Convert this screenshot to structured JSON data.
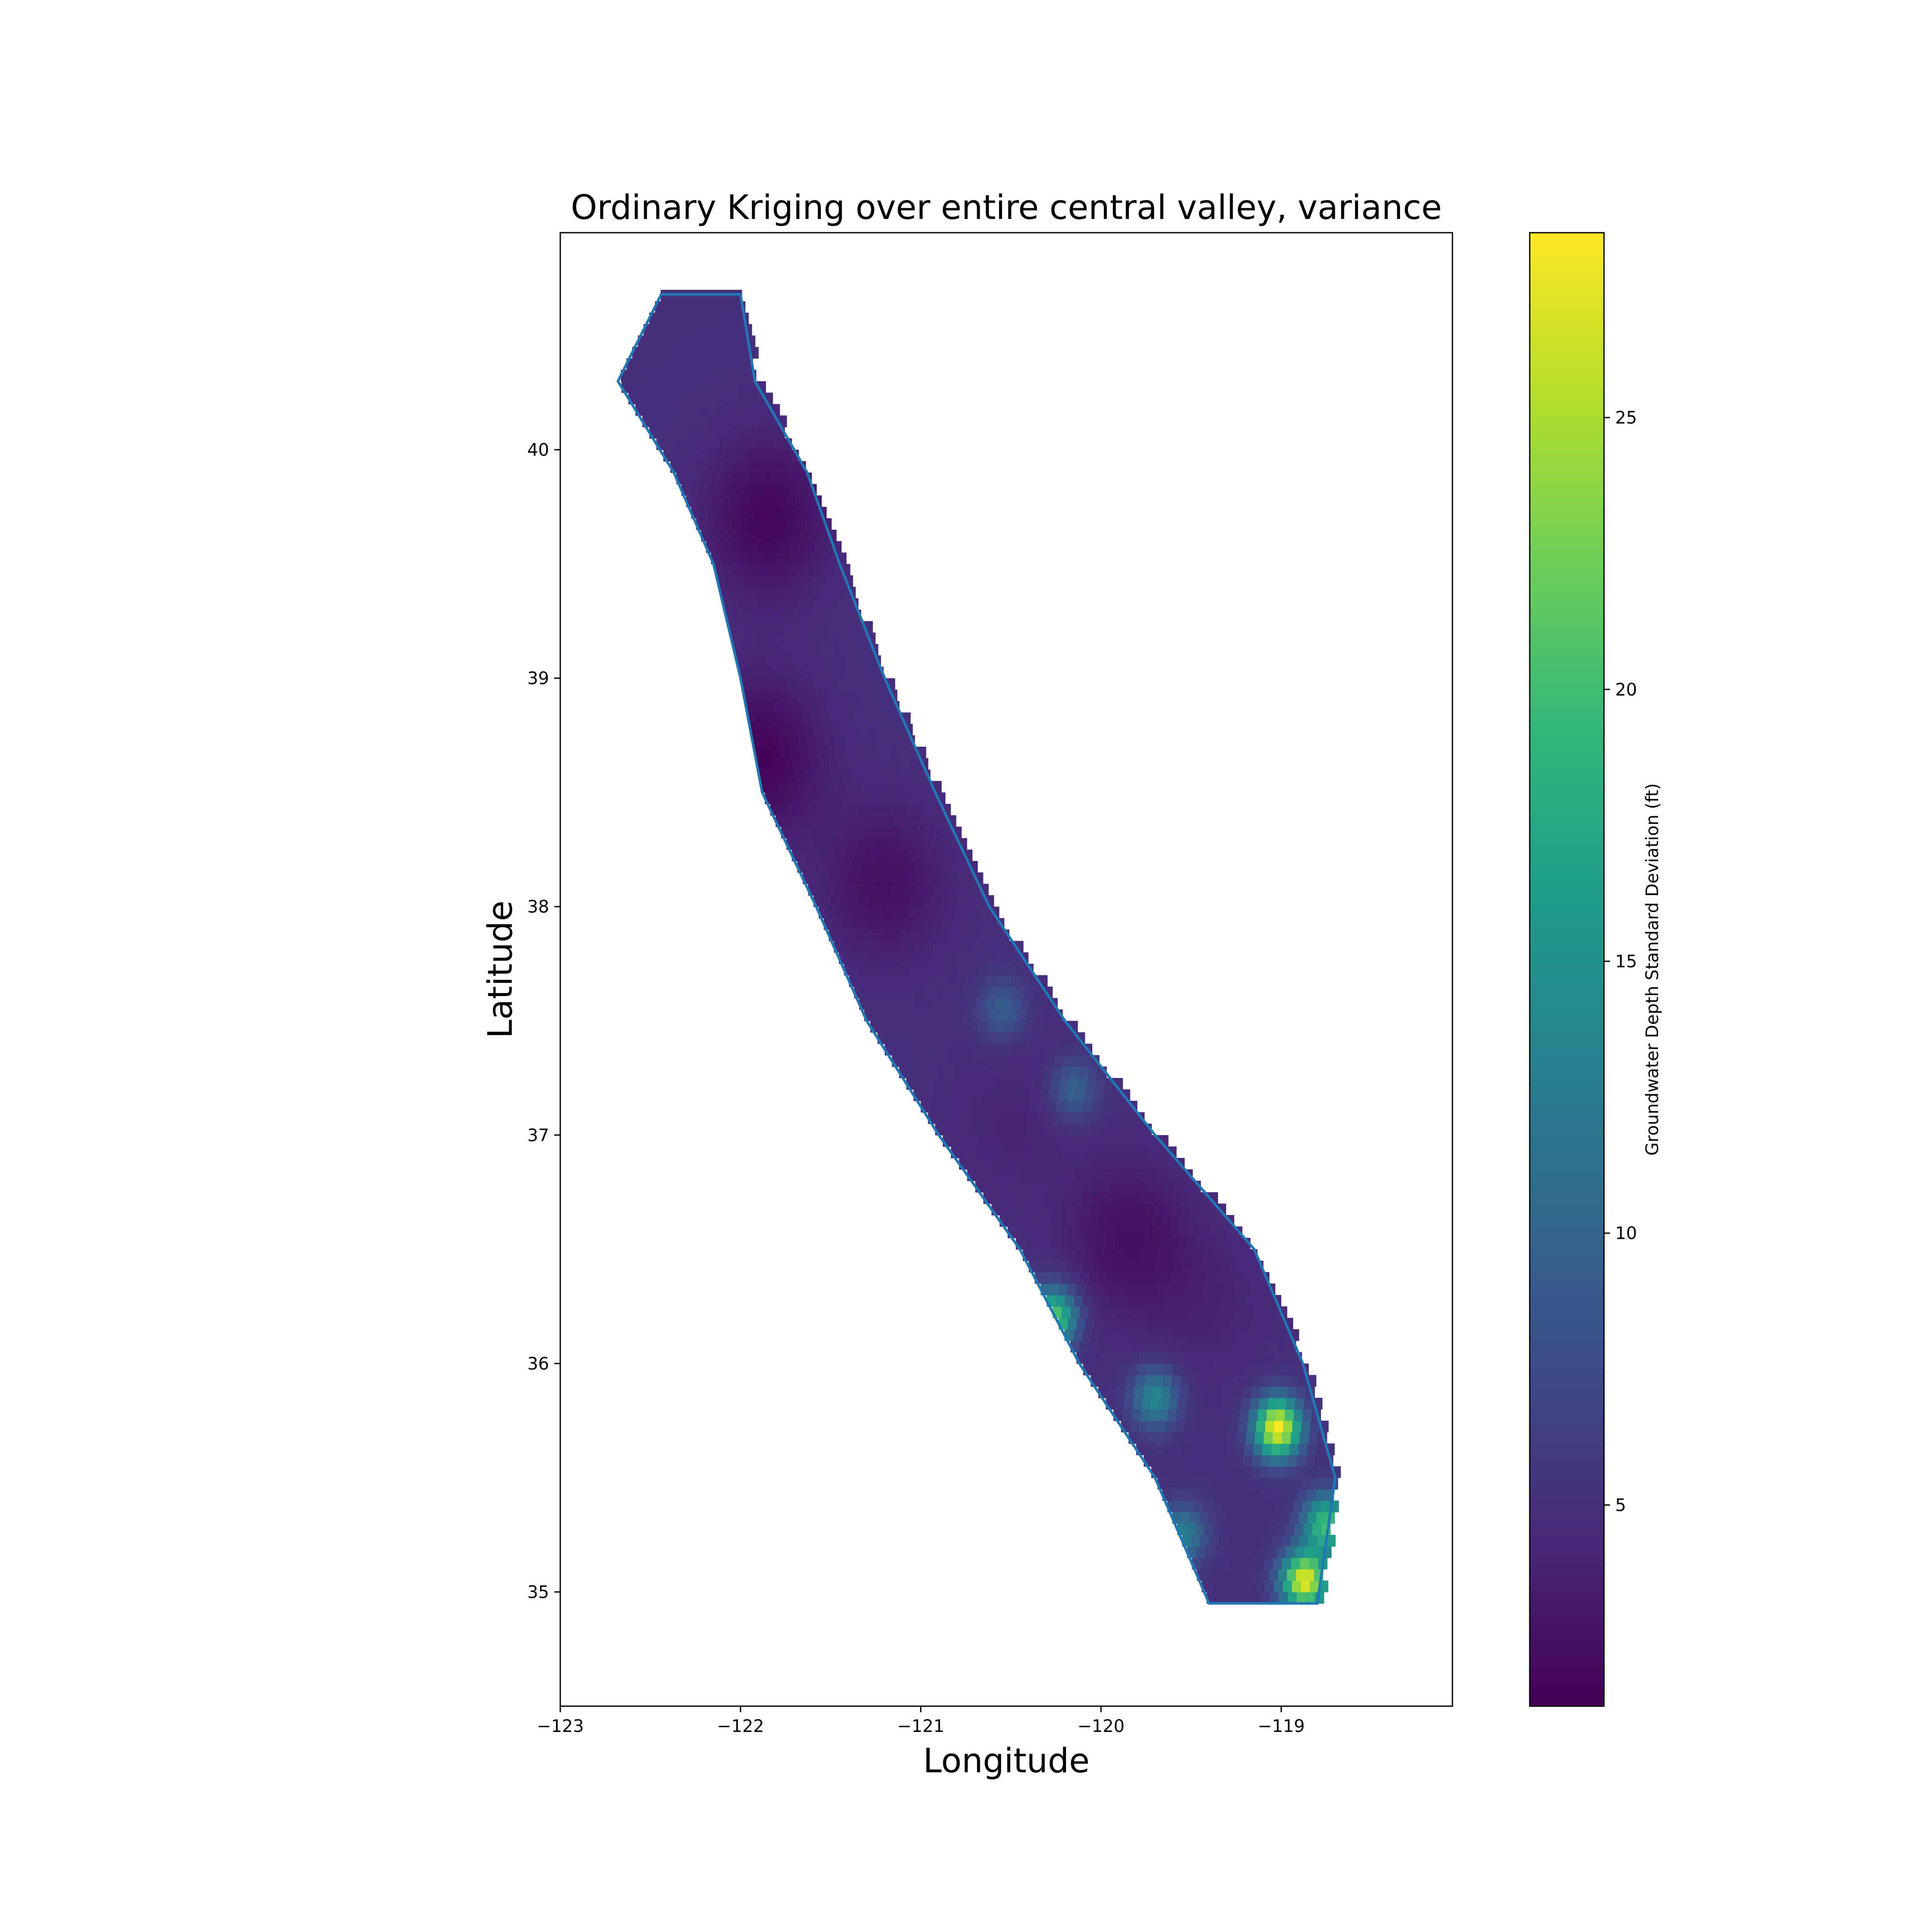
{
  "chart_data": {
    "type": "heatmap",
    "title": "Ordinary Kriging over entire central valley, variance",
    "xlabel": "Longitude",
    "ylabel": "Latitude",
    "xlim": [
      -123.0,
      -118.05
    ],
    "ylim": [
      34.5,
      40.95
    ],
    "xticks": [
      -123,
      -122,
      -121,
      -120,
      -119
    ],
    "xtick_labels": [
      "−123",
      "−122",
      "−121",
      "−120",
      "−119"
    ],
    "yticks": [
      35,
      36,
      37,
      38,
      39,
      40
    ],
    "ytick_labels": [
      "35",
      "36",
      "37",
      "38",
      "39",
      "40"
    ],
    "grid": false,
    "colormap": "viridis",
    "colorbar": {
      "label": "Groundwater Depth Standard Deviation (ft)",
      "range": [
        1.3,
        28.4
      ],
      "ticks": [
        5,
        10,
        15,
        20,
        25
      ],
      "tick_labels": [
        "5",
        "10",
        "15",
        "20",
        "25"
      ]
    },
    "valley_centerline": [
      {
        "lat": 40.68,
        "lon": -122.22
      },
      {
        "lat": 40.3,
        "lon": -122.3
      },
      {
        "lat": 39.9,
        "lon": -122.0
      },
      {
        "lat": 39.5,
        "lon": -121.8
      },
      {
        "lat": 39.0,
        "lon": -121.6
      },
      {
        "lat": 38.5,
        "lon": -121.4
      },
      {
        "lat": 38.0,
        "lon": -121.1
      },
      {
        "lat": 37.5,
        "lon": -120.75
      },
      {
        "lat": 37.0,
        "lon": -120.3
      },
      {
        "lat": 36.5,
        "lon": -119.8
      },
      {
        "lat": 36.0,
        "lon": -119.5
      },
      {
        "lat": 35.5,
        "lon": -119.2
      },
      {
        "lat": 34.95,
        "lon": -119.1
      }
    ],
    "valley_halfwidth_lon": [
      0.22,
      0.38,
      0.37,
      0.35,
      0.4,
      0.48,
      0.48,
      0.55,
      0.6,
      0.65,
      0.62,
      0.5,
      0.3
    ],
    "hotspots": [
      {
        "lon": -119.02,
        "lat": 35.72,
        "value": 28.4
      },
      {
        "lon": -118.87,
        "lat": 35.05,
        "value": 27.5
      },
      {
        "lon": -120.27,
        "lat": 36.2,
        "value": 22.0
      },
      {
        "lon": -118.75,
        "lat": 35.3,
        "value": 20.0
      },
      {
        "lon": -120.55,
        "lat": 37.55,
        "value": 9.5
      },
      {
        "lon": -120.15,
        "lat": 37.2,
        "value": 10.0
      },
      {
        "lon": -119.7,
        "lat": 35.85,
        "value": 14.0
      },
      {
        "lon": -119.55,
        "lat": 35.25,
        "value": 13.0
      }
    ],
    "lowspots": [
      {
        "lon": -121.85,
        "lat": 39.7,
        "value": 1.8
      },
      {
        "lon": -121.9,
        "lat": 38.65,
        "value": 1.5
      },
      {
        "lon": -121.2,
        "lat": 38.1,
        "value": 2.5
      },
      {
        "lon": -119.85,
        "lat": 36.55,
        "value": 2.5
      },
      {
        "lon": -119.4,
        "lat": 36.25,
        "value": 4.0
      },
      {
        "lon": -120.5,
        "lat": 37.05,
        "value": 4.0
      }
    ],
    "base_value": 5.0,
    "colors": {
      "outline": "#1f77b4",
      "viridis": [
        "#440154",
        "#482878",
        "#3e4989",
        "#31688e",
        "#26828e",
        "#1f9e89",
        "#35b779",
        "#6ece58",
        "#b5de2b",
        "#fde725"
      ]
    }
  }
}
